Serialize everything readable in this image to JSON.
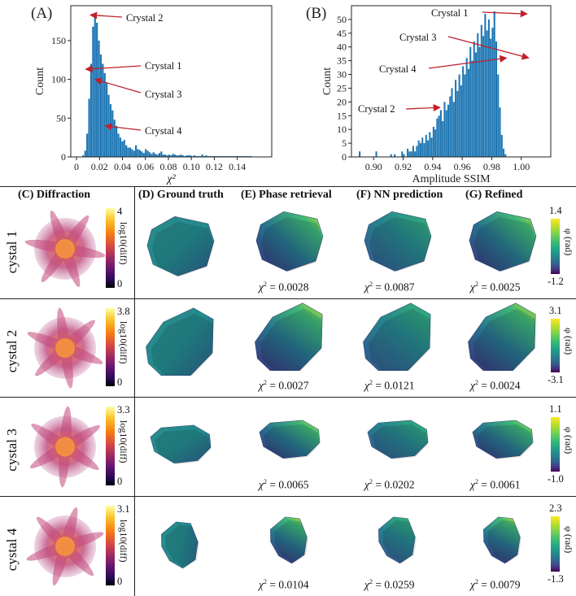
{
  "panels_top": {
    "A_label": "(A)",
    "B_label": "(B)",
    "A_xlabel": "χ²",
    "A_ylabel": "Count",
    "B_xlabel": "Amplitude SSIM",
    "B_ylabel": "Count",
    "A_annotations": [
      "Crystal 2",
      "Crystal 1",
      "Crystal 3",
      "Crystal 4"
    ],
    "B_annotations": [
      "Crystal 1",
      "Crystal 3",
      "Crystal 4",
      "Crystal 2"
    ]
  },
  "chart_data": [
    {
      "type": "bar",
      "id": "A",
      "xlabel": "χ²",
      "ylabel": "Count",
      "xlim": [
        -0.005,
        0.17
      ],
      "ylim": [
        0,
        195
      ],
      "xticks": [
        "0",
        "0.02",
        "0.04",
        "0.06",
        "0.08",
        "0.10",
        "0.12",
        "0.14"
      ],
      "yticks": [
        "0",
        "50",
        "100",
        "150"
      ],
      "bin_start": 0.0,
      "bin_width": 0.0017,
      "values": [
        0,
        0,
        0,
        2,
        8,
        30,
        75,
        120,
        168,
        183,
        173,
        150,
        132,
        120,
        108,
        95,
        80,
        68,
        60,
        48,
        40,
        30,
        25,
        20,
        22,
        15,
        12,
        12,
        10,
        8,
        15,
        10,
        9,
        7,
        5,
        10,
        8,
        6,
        4,
        6,
        4,
        3,
        5,
        7,
        3,
        3,
        2,
        3,
        2,
        4,
        3,
        2,
        2,
        3,
        2,
        1,
        2,
        2,
        2,
        1,
        2,
        1,
        1,
        1,
        3,
        1,
        2,
        1,
        1,
        1,
        1,
        1,
        1,
        1,
        1,
        1,
        1,
        1,
        1,
        1,
        1,
        1,
        1,
        1,
        1,
        1,
        1,
        1,
        1,
        1
      ],
      "annotations": [
        {
          "label": "Crystal 2",
          "x": 0.012,
          "y": 183
        },
        {
          "label": "Crystal 1",
          "x": 0.008,
          "y": 113
        },
        {
          "label": "Crystal 3",
          "x": 0.016,
          "y": 100
        },
        {
          "label": "Crystal 4",
          "x": 0.025,
          "y": 40
        }
      ]
    },
    {
      "type": "bar",
      "id": "B",
      "xlabel": "Amplitude SSIM",
      "ylabel": "Count",
      "xlim": [
        0.885,
        1.02
      ],
      "ylim": [
        0,
        55
      ],
      "xticks": [
        "0.90",
        "0.92",
        "0.94",
        "0.96",
        "0.98",
        "1.00"
      ],
      "yticks": [
        "0",
        "5",
        "10",
        "15",
        "20",
        "25",
        "30",
        "35",
        "40",
        "45",
        "50"
      ],
      "bin_start": 0.89,
      "bin_width": 0.00125,
      "values": [
        2,
        0,
        0,
        0,
        0,
        0,
        0,
        0,
        0,
        2,
        0,
        0,
        0,
        0,
        0,
        0,
        0,
        1,
        0,
        1,
        0,
        0,
        0,
        2,
        1,
        0,
        3,
        2,
        2,
        4,
        2,
        4,
        6,
        5,
        7,
        5,
        8,
        6,
        9,
        7,
        11,
        10,
        14,
        15,
        17,
        13,
        20,
        17,
        19,
        22,
        25,
        20,
        28,
        24,
        30,
        26,
        33,
        30,
        36,
        32,
        40,
        35,
        42,
        38,
        45,
        40,
        48,
        44,
        52,
        46,
        50,
        43,
        47,
        53,
        42,
        30,
        18,
        8,
        3,
        1,
        0
      ],
      "annotations": [
        {
          "label": "Crystal 1",
          "x": 1.004,
          "y": 52
        },
        {
          "label": "Crystal 3",
          "x": 1.005,
          "y": 36
        },
        {
          "label": "Crystal 4",
          "x": 0.99,
          "y": 36
        },
        {
          "label": "Crystal 2",
          "x": 0.945,
          "y": 18
        }
      ]
    }
  ],
  "columns": {
    "C": "(C) Diffraction",
    "D": "(D) Ground truth",
    "E": "(E) Phase retrieval",
    "F": "(F) NN prediction",
    "G": "(G) Refined"
  },
  "rows": [
    {
      "label": "cystal 1",
      "diff_max": "4",
      "diff_min": "0",
      "diff_cb_label": "log10(diff)",
      "phase_max": "1.4",
      "phase_min": "-1.2",
      "phase_cb_label": "φ (rad)",
      "chi_prefix": "χ",
      "chi_E": " = 0.0028",
      "chi_F": " = 0.0087",
      "chi_G": " = 0.0025"
    },
    {
      "label": "cystal 2",
      "diff_max": "3.8",
      "diff_min": "0",
      "diff_cb_label": "log10(diff)",
      "phase_max": "3.1",
      "phase_min": "-3.1",
      "phase_cb_label": "φ (rad)",
      "chi_prefix": "χ",
      "chi_E": " = 0.0027",
      "chi_F": " = 0.0121",
      "chi_G": " = 0.0024"
    },
    {
      "label": "cystal 3",
      "diff_max": "3.3",
      "diff_min": "0",
      "diff_cb_label": "log10(diff)",
      "phase_max": "1.1",
      "phase_min": "-1.0",
      "phase_cb_label": "φ (rad)",
      "chi_prefix": "χ",
      "chi_E": " = 0.0065",
      "chi_F": " = 0.0202",
      "chi_G": " = 0.0061"
    },
    {
      "label": "cystal 4",
      "diff_max": "3.1",
      "diff_min": "0",
      "diff_cb_label": "log10(diff)",
      "phase_max": "2.3",
      "phase_min": "-1.3",
      "phase_cb_label": "φ (rad)",
      "chi_prefix": "χ",
      "chi_E": " = 0.0104",
      "chi_F": " = 0.0259",
      "chi_G": " = 0.0079"
    }
  ],
  "colors": {
    "bar": "#1f77b4",
    "arrow": "#c0202a",
    "border": "#222222"
  }
}
